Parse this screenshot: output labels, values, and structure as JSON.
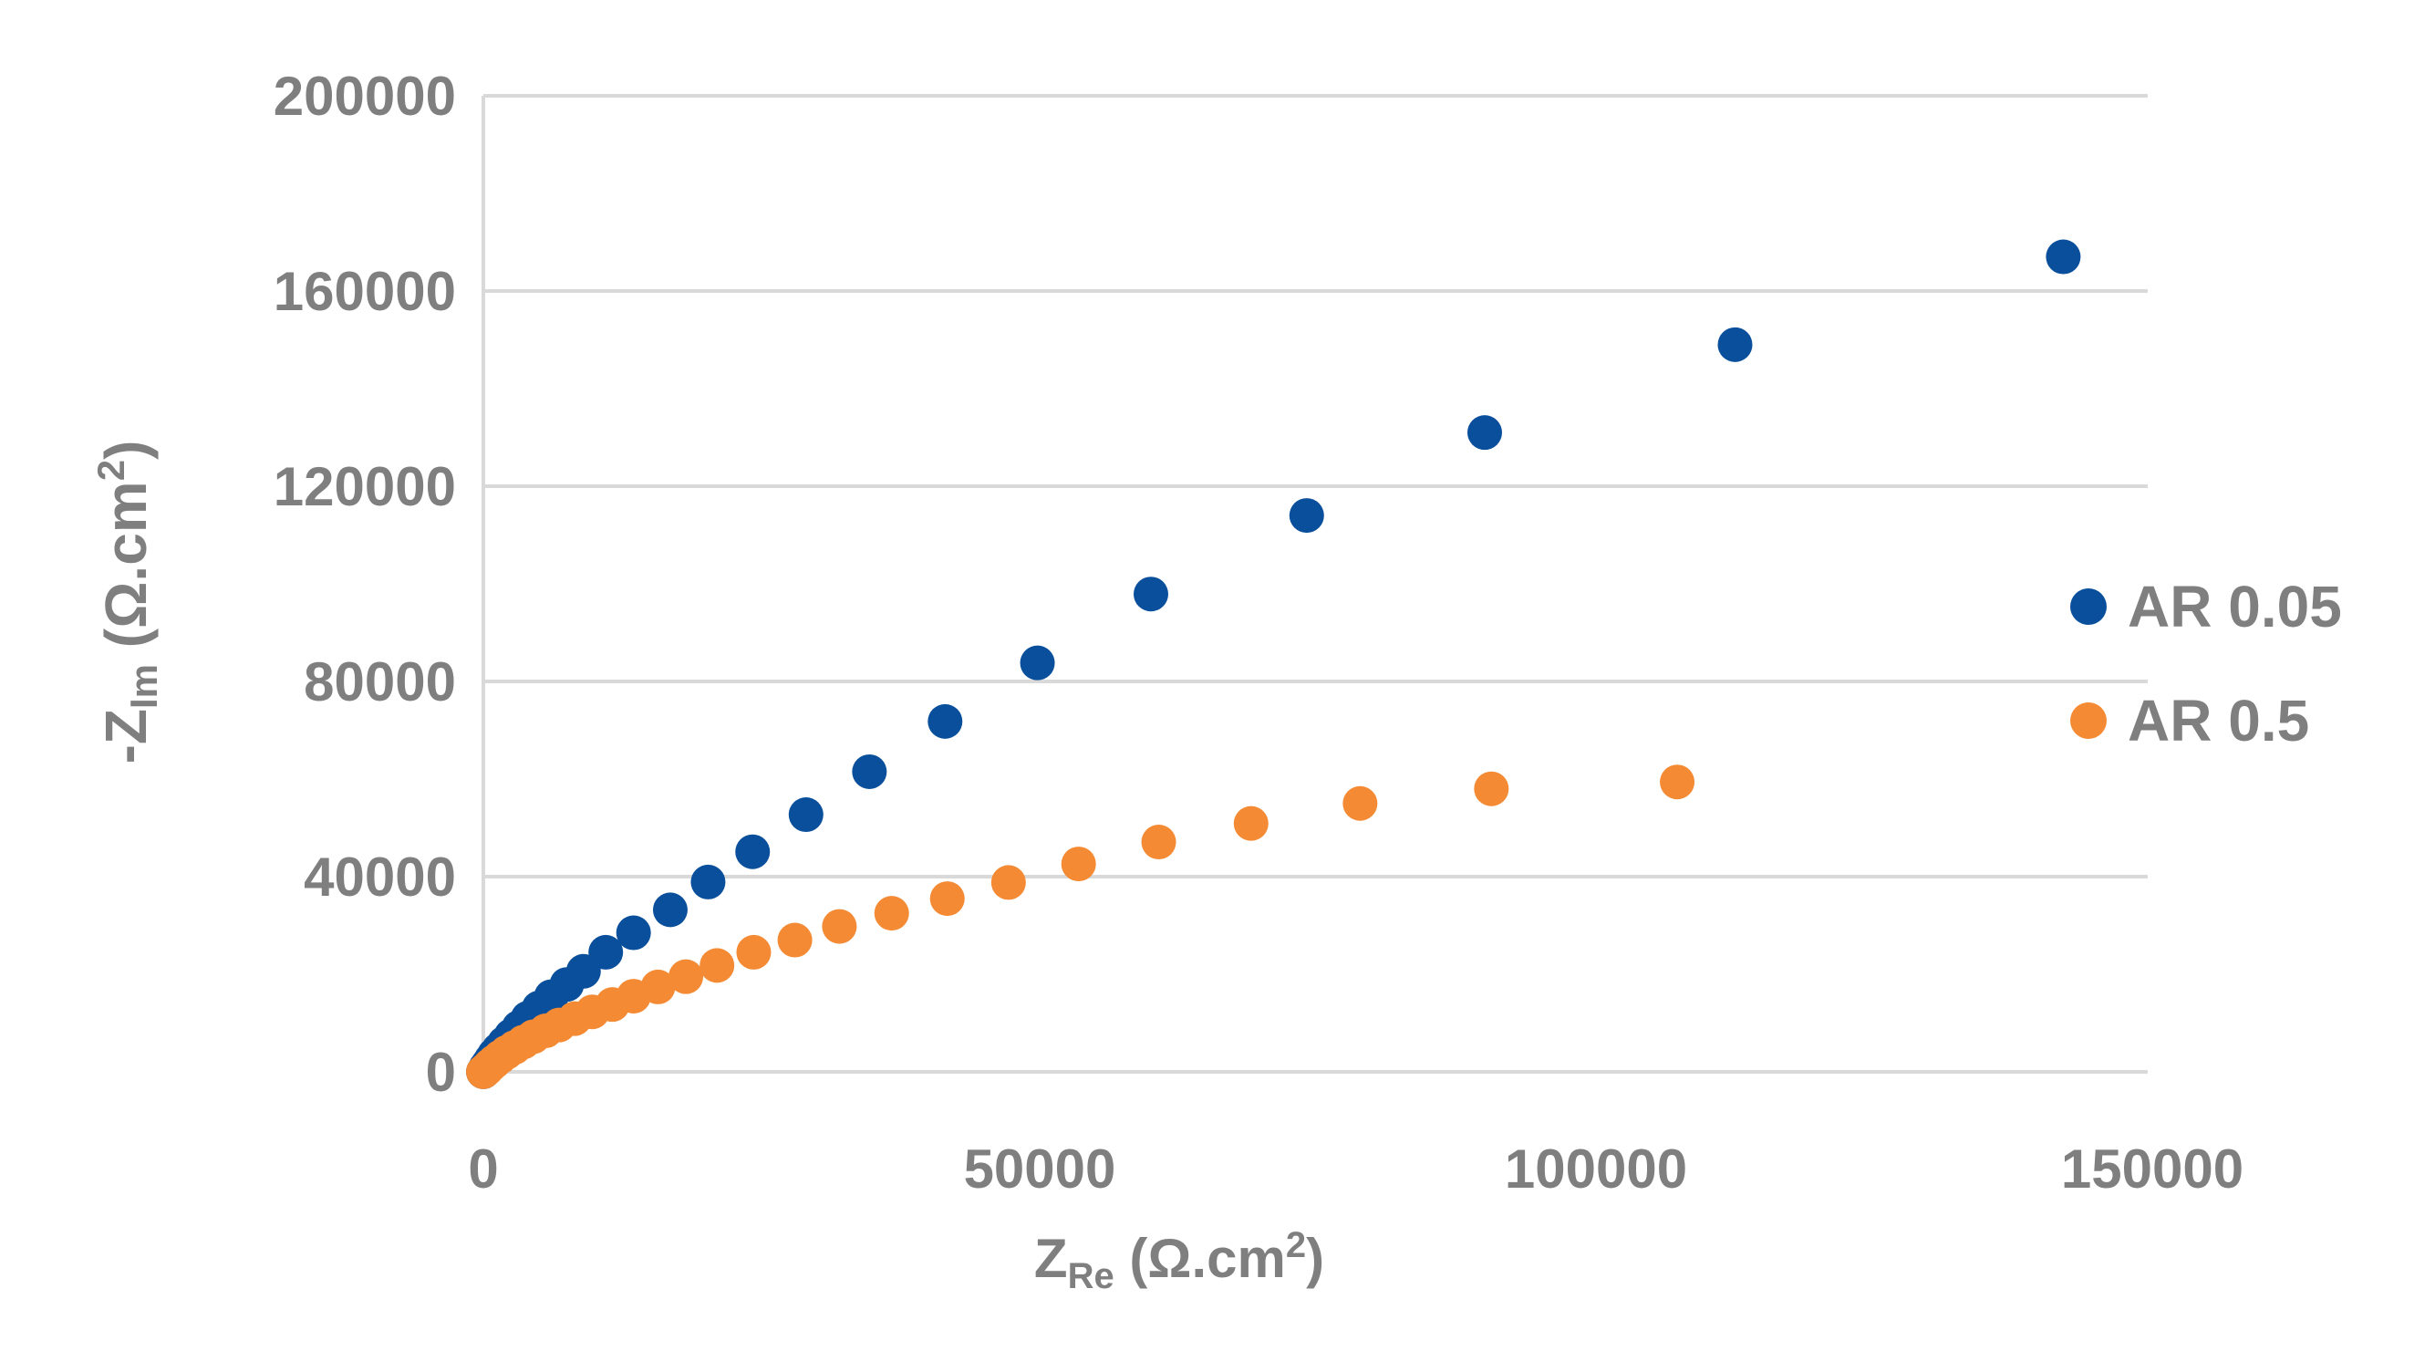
{
  "chart_data": {
    "type": "scatter",
    "title": "",
    "xlabel": {
      "main": "Z",
      "sub": "Re",
      "unit": " (Ω.cm",
      "sup": "2",
      "close": ")"
    },
    "ylabel": {
      "main": "-Z",
      "sub": "Im",
      "unit": " (Ω.cm",
      "sup": "2",
      "close": ")"
    },
    "xlim": [
      0,
      150000
    ],
    "ylim": [
      0,
      200000
    ],
    "x_ticks": [
      0,
      50000,
      100000,
      150000
    ],
    "x_tick_labels": [
      "0",
      "50000",
      "100000",
      "150000"
    ],
    "y_ticks": [
      0,
      40000,
      80000,
      120000,
      160000,
      200000
    ],
    "y_tick_labels": [
      "0",
      "40000",
      "80000",
      "120000",
      "160000",
      "200000"
    ],
    "grid": "horizontal",
    "legend_position": "right",
    "series": [
      {
        "name": "AR 0.05",
        "color": "#0a4f9c",
        "points": [
          [
            0,
            0
          ],
          [
            200,
            800
          ],
          [
            450,
            1600
          ],
          [
            700,
            2500
          ],
          [
            1000,
            3500
          ],
          [
            1400,
            4600
          ],
          [
            1900,
            5900
          ],
          [
            2500,
            7400
          ],
          [
            3200,
            9100
          ],
          [
            4000,
            11000
          ],
          [
            5000,
            13100
          ],
          [
            6100,
            15400
          ],
          [
            7500,
            17900
          ],
          [
            9000,
            20600
          ],
          [
            11000,
            24500
          ],
          [
            13500,
            28500
          ],
          [
            16800,
            33200
          ],
          [
            20200,
            38900
          ],
          [
            24200,
            45100
          ],
          [
            29000,
            52700
          ],
          [
            34700,
            61500
          ],
          [
            41500,
            71800
          ],
          [
            49800,
            83800
          ],
          [
            60000,
            97900
          ],
          [
            74000,
            114000
          ],
          [
            90000,
            131000
          ],
          [
            112500,
            149000
          ],
          [
            142000,
            167000
          ]
        ]
      },
      {
        "name": "AR 0.5",
        "color": "#f48a33",
        "points": [
          [
            0,
            0
          ],
          [
            300,
            600
          ],
          [
            600,
            1300
          ],
          [
            1000,
            2100
          ],
          [
            1500,
            3000
          ],
          [
            2100,
            4000
          ],
          [
            2800,
            5000
          ],
          [
            3600,
            6100
          ],
          [
            4500,
            7200
          ],
          [
            5600,
            8400
          ],
          [
            6800,
            9600
          ],
          [
            8200,
            10900
          ],
          [
            9800,
            12300
          ],
          [
            11600,
            13800
          ],
          [
            13500,
            15500
          ],
          [
            15700,
            17400
          ],
          [
            18200,
            19500
          ],
          [
            21000,
            21800
          ],
          [
            24300,
            24500
          ],
          [
            28000,
            27000
          ],
          [
            32000,
            29800
          ],
          [
            36700,
            32500
          ],
          [
            41700,
            35500
          ],
          [
            47200,
            38800
          ],
          [
            53500,
            42600
          ],
          [
            60700,
            47100
          ],
          [
            69000,
            50900
          ],
          [
            78800,
            55000
          ],
          [
            90600,
            58000
          ],
          [
            107300,
            59400
          ]
        ]
      }
    ]
  }
}
